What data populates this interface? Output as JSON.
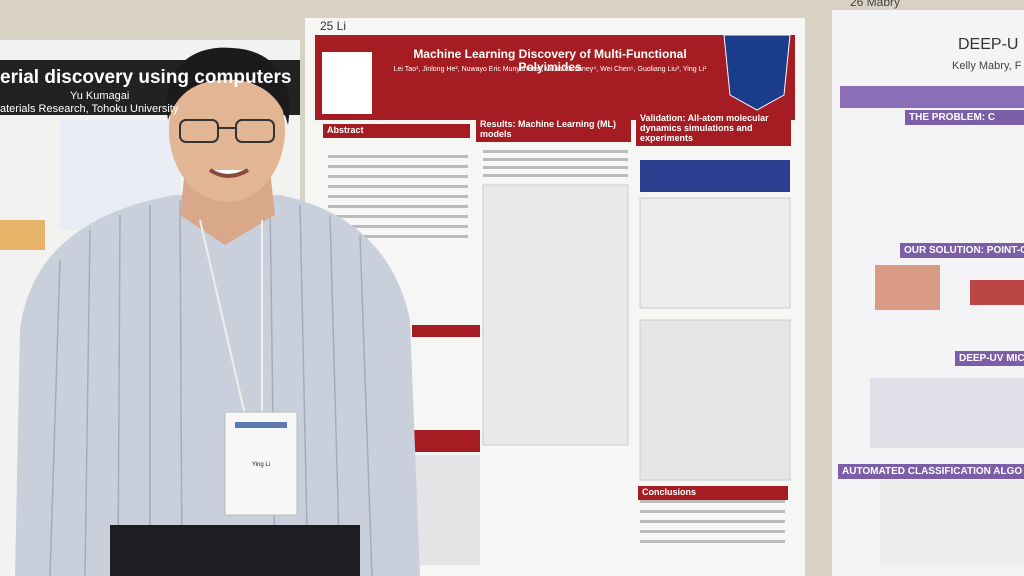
{
  "left_poster": {
    "title": "erial discovery using computers",
    "author": "Yu Kumagai",
    "affiliation": "aterials Research, Tohoku University"
  },
  "center_poster": {
    "number": "25 Li",
    "title": "Machine Learning Discovery of Multi-Functional Polyimides",
    "authors": "Lei Tao¹, Jinlong He², Nuwayo Eric Munyaneza³, Vikas Varshney⁴, Wei Chen⁵, Guoliang Liu³, Ying Li¹",
    "sections": [
      "Abstract",
      "Results: Machine Learning (ML) models",
      "Validation: All-atom molecular dynamics simulations and experiments",
      "Conclusions"
    ]
  },
  "right_poster": {
    "number": "26 Mabry",
    "title": "DEEP-U",
    "author": "Kelly Mabry, F",
    "sections": [
      "THE PROBLEM: C",
      "OUR SOLUTION: POINT-OF",
      "DEEP-UV MICR",
      "AUTOMATED CLASSIFICATION ALGO"
    ]
  },
  "badge": {
    "name": "Ying Li"
  }
}
